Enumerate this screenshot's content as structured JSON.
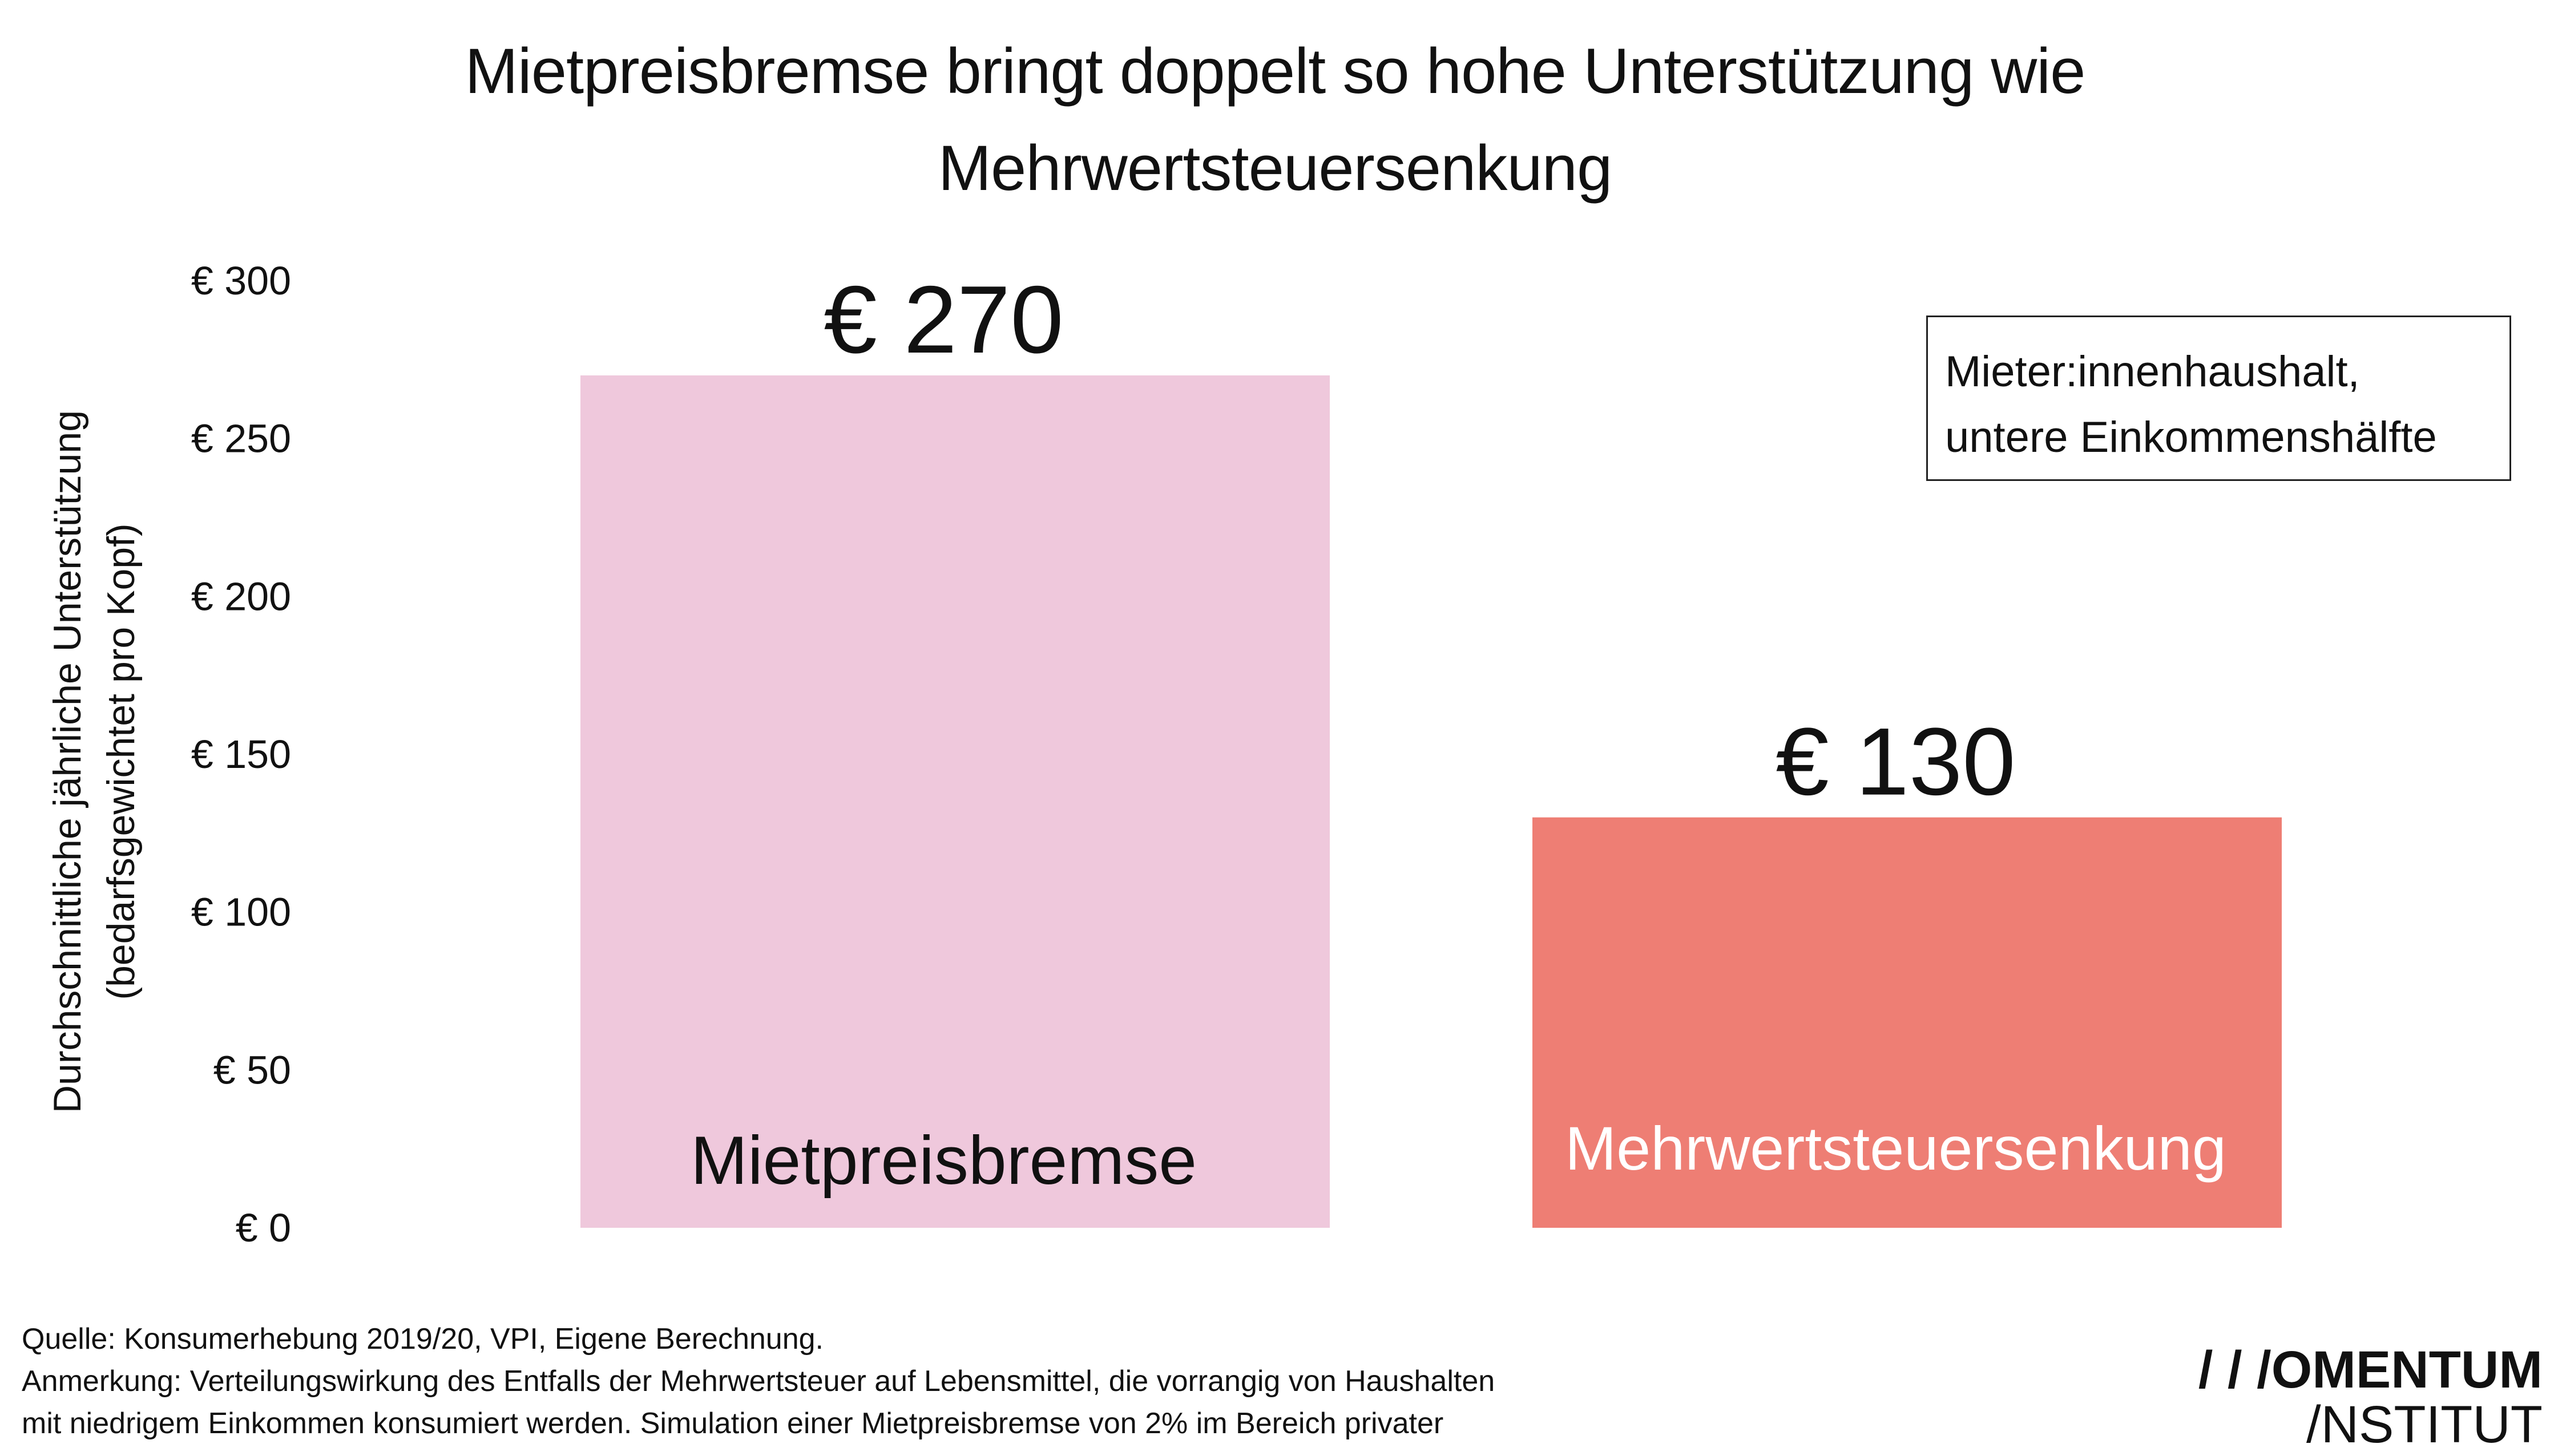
{
  "title": {
    "line1": "Mietpreisbremse bringt doppelt so hohe Unterstützung wie",
    "line2": "Mehrwertsteuersenkung"
  },
  "y_axis": {
    "label_line1": "Durchschnittliche jährliche Unterstützung",
    "label_line2": "(bedarfsgewichtet pro Kopf)"
  },
  "legend": {
    "line1": "Mieter:innenhaushalt,",
    "line2": "untere Einkommenshälfte"
  },
  "footer": {
    "source": "Quelle: Konsumerhebung 2019/20, VPI, Eigene Berechnung.",
    "note_line1": "Anmerkung: Verteilungswirkung des Entfalls der Mehrwertsteuer auf Lebensmittel, die vorrangig von Haushalten",
    "note_line2": "mit niedrigem Einkommen konsumiert werden. Simulation einer Mietpreisbremse von 2% im Bereich privater"
  },
  "logo": {
    "line1": "/ / /OMENTUM",
    "line2": "/NSTITUT"
  },
  "colors": {
    "bar_mietpreisbremse": "#efc8dc",
    "bar_mehrwertsteuer": "#ee7e74",
    "text": "#111111",
    "label_on_dark": "#ffffff"
  },
  "chart_data": {
    "type": "bar",
    "categories": [
      "Mietpreisbremse",
      "Mehrwertsteuersenkung"
    ],
    "values": [
      270,
      130
    ],
    "value_labels": [
      "€ 270",
      "€ 130"
    ],
    "ylim": [
      0,
      300
    ],
    "yticks": [
      0,
      50,
      100,
      150,
      200,
      250,
      300
    ],
    "ytick_labels": [
      "€ 0",
      "€ 50",
      "€ 100",
      "€ 150",
      "€ 200",
      "€ 250",
      "€ 300"
    ],
    "grid": false,
    "legend_position": "top-right"
  }
}
